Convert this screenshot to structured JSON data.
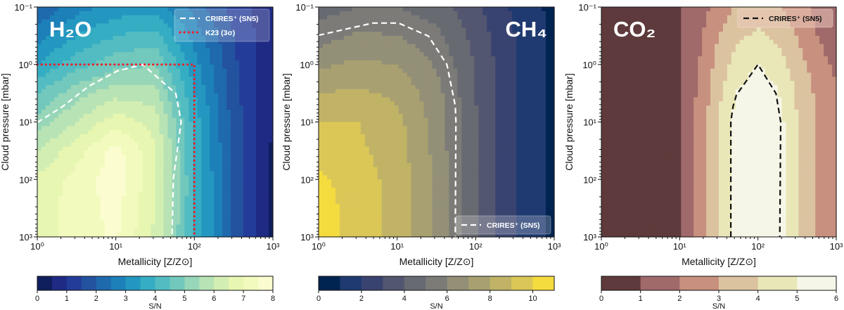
{
  "chart_data": [
    {
      "type": "contour",
      "title": "H₂O",
      "xlabel": "Metallicity [Z/Z⊙]",
      "ylabel": "Cloud pressure [mbar]",
      "x_scale": "log",
      "y_scale": "log",
      "y_inverted": true,
      "xlim": [
        1,
        1000
      ],
      "ylim": [
        0.1,
        1000
      ],
      "x_ticks": [
        1,
        10,
        100,
        1000
      ],
      "x_tick_labels": [
        "10⁰",
        "10¹",
        "10²",
        "10³"
      ],
      "y_ticks": [
        0.1,
        1,
        10,
        100,
        1000
      ],
      "y_tick_labels": [
        "10⁻¹",
        "10⁰",
        "10¹",
        "10²",
        "10³"
      ],
      "grid_x": [
        1,
        3.16,
        10,
        31.6,
        100,
        316,
        1000
      ],
      "grid_y": [
        0.1,
        0.316,
        1,
        3.16,
        10,
        31.6,
        100,
        316,
        1000
      ],
      "sn": [
        [
          2.0,
          2.8,
          3.2,
          3.3,
          2.3,
          1.3,
          0.6
        ],
        [
          2.8,
          3.5,
          4.0,
          4.2,
          2.8,
          1.5,
          0.6
        ],
        [
          3.5,
          4.3,
          4.8,
          5.0,
          3.2,
          1.6,
          0.6
        ],
        [
          4.5,
          5.3,
          5.8,
          5.7,
          3.5,
          1.7,
          0.5
        ],
        [
          5.2,
          6.0,
          6.8,
          6.3,
          3.8,
          1.8,
          0.5
        ],
        [
          6.0,
          6.8,
          7.7,
          6.6,
          3.9,
          1.8,
          0.4
        ],
        [
          6.6,
          7.2,
          7.8,
          6.6,
          4.0,
          1.8,
          0.4
        ],
        [
          6.8,
          7.2,
          7.7,
          6.5,
          4.0,
          1.8,
          0.4
        ],
        [
          6.8,
          7.2,
          7.6,
          6.4,
          4.0,
          1.8,
          0.4
        ]
      ],
      "colorbar": {
        "label": "S/N",
        "min": 0,
        "max": 8,
        "step": 0.5,
        "tick_values": [
          0,
          1,
          2,
          3,
          4,
          5,
          6,
          7,
          8
        ],
        "tick_labels": [
          "0",
          "1",
          "2",
          "3",
          "4",
          "5",
          "6",
          "7",
          "8"
        ],
        "colors": [
          "#0f1e5c",
          "#1e2a84",
          "#243c99",
          "#23529f",
          "#1f69ad",
          "#1d80b8",
          "#2497c1",
          "#35adc3",
          "#52bcc2",
          "#72c8bd",
          "#97d6b8",
          "#b8e3b5",
          "#d3eeb3",
          "#e7f6b1",
          "#f2fabd",
          "#fbfdd0"
        ]
      },
      "lines": [
        {
          "name": "CRIRES⁺ (SN5)",
          "style": "dashed",
          "color": "#ffffff",
          "x": [
            1.0,
            2.1,
            4.5,
            10.4,
            22,
            58,
            68,
            54,
            52
          ],
          "y": [
            10.2,
            5.4,
            2.4,
            1.3,
            1.0,
            3.2,
            10,
            96,
            1000
          ]
        },
        {
          "name": "K23 (3σ)",
          "style": "dotted",
          "color": "#e8202a",
          "x": [
            1,
            100,
            100
          ],
          "y": [
            1,
            1,
            1000
          ]
        }
      ],
      "legend_placement": "top-right"
    },
    {
      "type": "contour",
      "title": "CH₄",
      "xlabel": "Metallicity [Z/Z⊙]",
      "ylabel": "Cloud pressure [mbar]",
      "x_scale": "log",
      "y_scale": "log",
      "y_inverted": true,
      "xlim": [
        1,
        1000
      ],
      "ylim": [
        0.1,
        1000
      ],
      "x_ticks": [
        1,
        10,
        100,
        1000
      ],
      "x_tick_labels": [
        "10⁰",
        "10¹",
        "10²",
        "10³"
      ],
      "y_ticks": [
        0.1,
        1,
        10,
        100,
        1000
      ],
      "y_tick_labels": [
        "10⁻¹",
        "10⁰",
        "10¹",
        "10²",
        "10³"
      ],
      "grid_x": [
        1,
        3.16,
        10,
        31.6,
        100,
        316,
        1000
      ],
      "grid_y": [
        0.1,
        0.316,
        1,
        3.16,
        10,
        31.6,
        100,
        316,
        1000
      ],
      "sn": [
        [
          4.5,
          5.0,
          5.0,
          4.5,
          3.2,
          1.8,
          0.7
        ],
        [
          5.5,
          6.2,
          6.0,
          5.3,
          3.6,
          2.0,
          0.7
        ],
        [
          6.8,
          7.2,
          7.0,
          5.9,
          3.9,
          2.0,
          0.7
        ],
        [
          8.0,
          8.2,
          7.8,
          6.4,
          4.0,
          2.0,
          0.7
        ],
        [
          9.0,
          9.0,
          8.3,
          6.6,
          4.1,
          2.0,
          0.7
        ],
        [
          9.6,
          9.2,
          8.5,
          6.7,
          4.1,
          2.0,
          0.7
        ],
        [
          10.2,
          9.5,
          8.6,
          6.8,
          4.1,
          2.0,
          0.7
        ],
        [
          10.5,
          9.5,
          8.6,
          6.8,
          4.1,
          2.0,
          0.7
        ],
        [
          10.5,
          9.5,
          8.6,
          6.8,
          4.1,
          2.0,
          0.7
        ]
      ],
      "colorbar": {
        "label": "S/N",
        "min": 0,
        "max": 11,
        "step": 1,
        "tick_values": [
          0,
          2,
          4,
          6,
          8,
          10
        ],
        "tick_labels": [
          "0",
          "2",
          "4",
          "6",
          "8",
          "10"
        ],
        "colors": [
          "#002451",
          "#1f3a70",
          "#394370",
          "#525670",
          "#676a71",
          "#7c7b78",
          "#939077",
          "#a8a070",
          "#c0b366",
          "#dbc757",
          "#f5dc3e"
        ]
      },
      "lines": [
        {
          "name": "CRIRES⁺ (SN5)",
          "style": "dashed",
          "color": "#ffffff",
          "x": [
            1.0,
            4.9,
            10.4,
            25,
            43,
            55,
            56,
            55
          ],
          "y": [
            0.31,
            0.19,
            0.19,
            0.32,
            1.0,
            5.2,
            9.6,
            1000
          ]
        }
      ],
      "legend_placement": "bottom-right"
    },
    {
      "type": "contour",
      "title": "CO₂",
      "xlabel": "Metallicity [Z/Z⊙]",
      "ylabel": "Cloud pressure [mbar]",
      "x_scale": "log",
      "y_scale": "log",
      "y_inverted": true,
      "xlim": [
        1,
        1000
      ],
      "ylim": [
        0.1,
        1000
      ],
      "x_ticks": [
        1,
        10,
        100,
        1000
      ],
      "x_tick_labels": [
        "10⁰",
        "10¹",
        "10²",
        "10³"
      ],
      "y_ticks": [
        0.1,
        1,
        10,
        100,
        1000
      ],
      "y_tick_labels": [
        "10⁻¹",
        "10⁰",
        "10¹",
        "10²",
        "10³"
      ],
      "grid_x": [
        1,
        3.16,
        10,
        17.8,
        31.6,
        56.2,
        100,
        178,
        316,
        562,
        1000
      ],
      "grid_y": [
        0.1,
        0.316,
        1,
        3.16,
        10,
        31.6,
        100,
        316,
        1000
      ],
      "sn": [
        [
          0.3,
          0.5,
          0.9,
          1.5,
          2.5,
          3.2,
          3.5,
          3.2,
          2.4,
          1.7,
          1.0
        ],
        [
          0.3,
          0.5,
          0.95,
          1.8,
          3.0,
          3.8,
          4.2,
          3.8,
          3.0,
          2.0,
          1.3
        ],
        [
          0.3,
          0.5,
          1.0,
          2.0,
          3.4,
          4.5,
          5.0,
          4.5,
          3.5,
          2.5,
          1.8
        ],
        [
          0.3,
          0.5,
          1.0,
          2.2,
          3.8,
          5.1,
          5.6,
          5.1,
          3.9,
          2.8,
          2.1
        ],
        [
          0.3,
          0.5,
          1.0,
          2.3,
          4.0,
          5.5,
          5.9,
          5.5,
          4.0,
          2.95,
          2.2
        ],
        [
          0.3,
          0.5,
          1.0,
          2.3,
          4.0,
          5.5,
          5.9,
          5.5,
          4.0,
          2.95,
          2.2
        ],
        [
          0.3,
          0.5,
          1.0,
          2.3,
          4.0,
          5.5,
          5.9,
          5.5,
          4.0,
          2.95,
          2.2
        ],
        [
          0.3,
          0.5,
          1.0,
          2.3,
          4.0,
          5.5,
          5.9,
          5.5,
          4.0,
          2.95,
          2.2
        ],
        [
          0.3,
          0.5,
          1.0,
          2.3,
          4.0,
          5.5,
          5.9,
          5.5,
          4.0,
          2.95,
          2.2
        ]
      ],
      "colorbar": {
        "label": "S/N",
        "min": 0,
        "max": 6,
        "step": 1,
        "tick_values": [
          0,
          1,
          2,
          3,
          4,
          5,
          6
        ],
        "tick_labels": [
          "0",
          "1",
          "2",
          "3",
          "4",
          "5",
          "6"
        ],
        "colors": [
          "#5e3a3c",
          "#a0696a",
          "#c8907f",
          "#dcc3a0",
          "#e9e7b8",
          "#f6f6e8"
        ]
      },
      "lines": [
        {
          "name": "CRIRES⁺ (SN5)",
          "style": "dashed",
          "color": "#111111",
          "x": [
            45,
            45,
            48,
            53,
            100,
            170,
            195,
            190
          ],
          "y": [
            1000,
            10,
            5.4,
            3.4,
            1.0,
            3.2,
            10,
            1000
          ]
        }
      ],
      "legend_placement": "top-right"
    }
  ]
}
